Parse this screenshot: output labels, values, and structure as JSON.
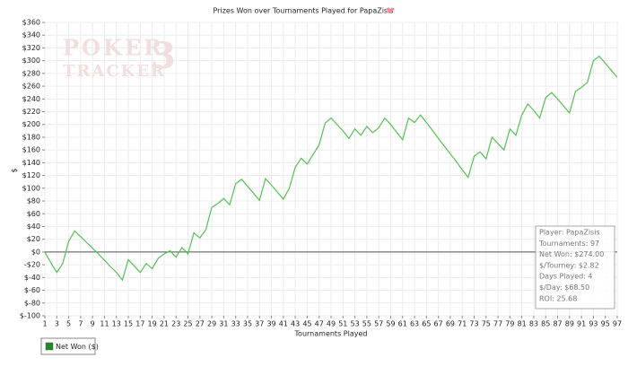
{
  "chart_data": {
    "type": "line",
    "title": "Prizes Won over Tournaments Played for PapaZisis",
    "x_label": "Tournaments Played",
    "y_label": "$",
    "watermark": [
      "POKER",
      "TRACKER",
      "3"
    ],
    "x": [
      1,
      2,
      3,
      4,
      5,
      6,
      7,
      8,
      9,
      10,
      11,
      12,
      13,
      14,
      15,
      16,
      17,
      18,
      19,
      20,
      21,
      22,
      23,
      24,
      25,
      26,
      27,
      28,
      29,
      30,
      31,
      32,
      33,
      34,
      35,
      36,
      37,
      38,
      39,
      40,
      41,
      42,
      43,
      44,
      45,
      46,
      47,
      48,
      49,
      50,
      51,
      52,
      53,
      54,
      55,
      56,
      57,
      58,
      59,
      60,
      61,
      62,
      63,
      64,
      65,
      66,
      67,
      68,
      69,
      70,
      71,
      72,
      73,
      74,
      75,
      76,
      77,
      78,
      79,
      80,
      81,
      82,
      83,
      84,
      85,
      86,
      87,
      88,
      89,
      90,
      91,
      92,
      93,
      94,
      95,
      96,
      97
    ],
    "series": [
      {
        "name": "Net Won ($)",
        "color": "#55c055",
        "values": [
          0,
          -17,
          -32,
          -18,
          17,
          33,
          24,
          15,
          6,
          -3,
          -13,
          -23,
          -32,
          -44,
          -12,
          -22,
          -32,
          -18,
          -26,
          -10,
          -3,
          2,
          -8,
          7,
          -3,
          30,
          22,
          35,
          70,
          76,
          84,
          74,
          107,
          114,
          103,
          92,
          81,
          115,
          105,
          94,
          83,
          100,
          133,
          147,
          138,
          153,
          168,
          202,
          210,
          200,
          190,
          178,
          193,
          183,
          197,
          187,
          195,
          210,
          200,
          188,
          176,
          210,
          203,
          215,
          203,
          191,
          178,
          166,
          154,
          142,
          129,
          117,
          150,
          157,
          146,
          180,
          170,
          160,
          193,
          183,
          215,
          232,
          222,
          210,
          242,
          250,
          240,
          229,
          218,
          252,
          258,
          266,
          300,
          307,
          296,
          285,
          274
        ]
      }
    ],
    "legend_marker_color": "#1e8c1e",
    "xlim": [
      1,
      97
    ],
    "xticks": [
      1,
      3,
      5,
      7,
      9,
      11,
      13,
      15,
      17,
      19,
      21,
      23,
      25,
      27,
      29,
      31,
      33,
      35,
      37,
      39,
      41,
      43,
      45,
      47,
      49,
      51,
      53,
      55,
      57,
      59,
      61,
      63,
      65,
      67,
      69,
      71,
      73,
      75,
      77,
      79,
      81,
      83,
      85,
      87,
      89,
      91,
      93,
      95,
      97
    ],
    "ylim": [
      -100,
      360
    ],
    "yticks": [
      {
        "value": -100,
        "label": "$-100"
      },
      {
        "value": -80,
        "label": "$-80"
      },
      {
        "value": -60,
        "label": "$-60"
      },
      {
        "value": -40,
        "label": "$-40"
      },
      {
        "value": -20,
        "label": "-$20"
      },
      {
        "value": 0,
        "label": "$0"
      },
      {
        "value": 20,
        "label": "$20"
      },
      {
        "value": 40,
        "label": "$40"
      },
      {
        "value": 60,
        "label": "$60"
      },
      {
        "value": 80,
        "label": "$80"
      },
      {
        "value": 100,
        "label": "$100"
      },
      {
        "value": 120,
        "label": "$120"
      },
      {
        "value": 140,
        "label": "$140"
      },
      {
        "value": 160,
        "label": "$160"
      },
      {
        "value": 180,
        "label": "$180"
      },
      {
        "value": 200,
        "label": "$200"
      },
      {
        "value": 220,
        "label": "$220"
      },
      {
        "value": 240,
        "label": "$240"
      },
      {
        "value": 260,
        "label": "$260"
      },
      {
        "value": 280,
        "label": "$280"
      },
      {
        "value": 300,
        "label": "$300"
      },
      {
        "value": 320,
        "label": "$320"
      },
      {
        "value": 340,
        "label": "$340"
      },
      {
        "value": 360,
        "label": "$360"
      }
    ],
    "grid": true,
    "annotations": [
      "Player: PapaZisis",
      "Tournaments: 97",
      "Net Won: $274.00",
      "$/Tourney: $2.82",
      "Days Played: 4",
      "$/Day: $68.50",
      "ROI: 25.68"
    ]
  }
}
